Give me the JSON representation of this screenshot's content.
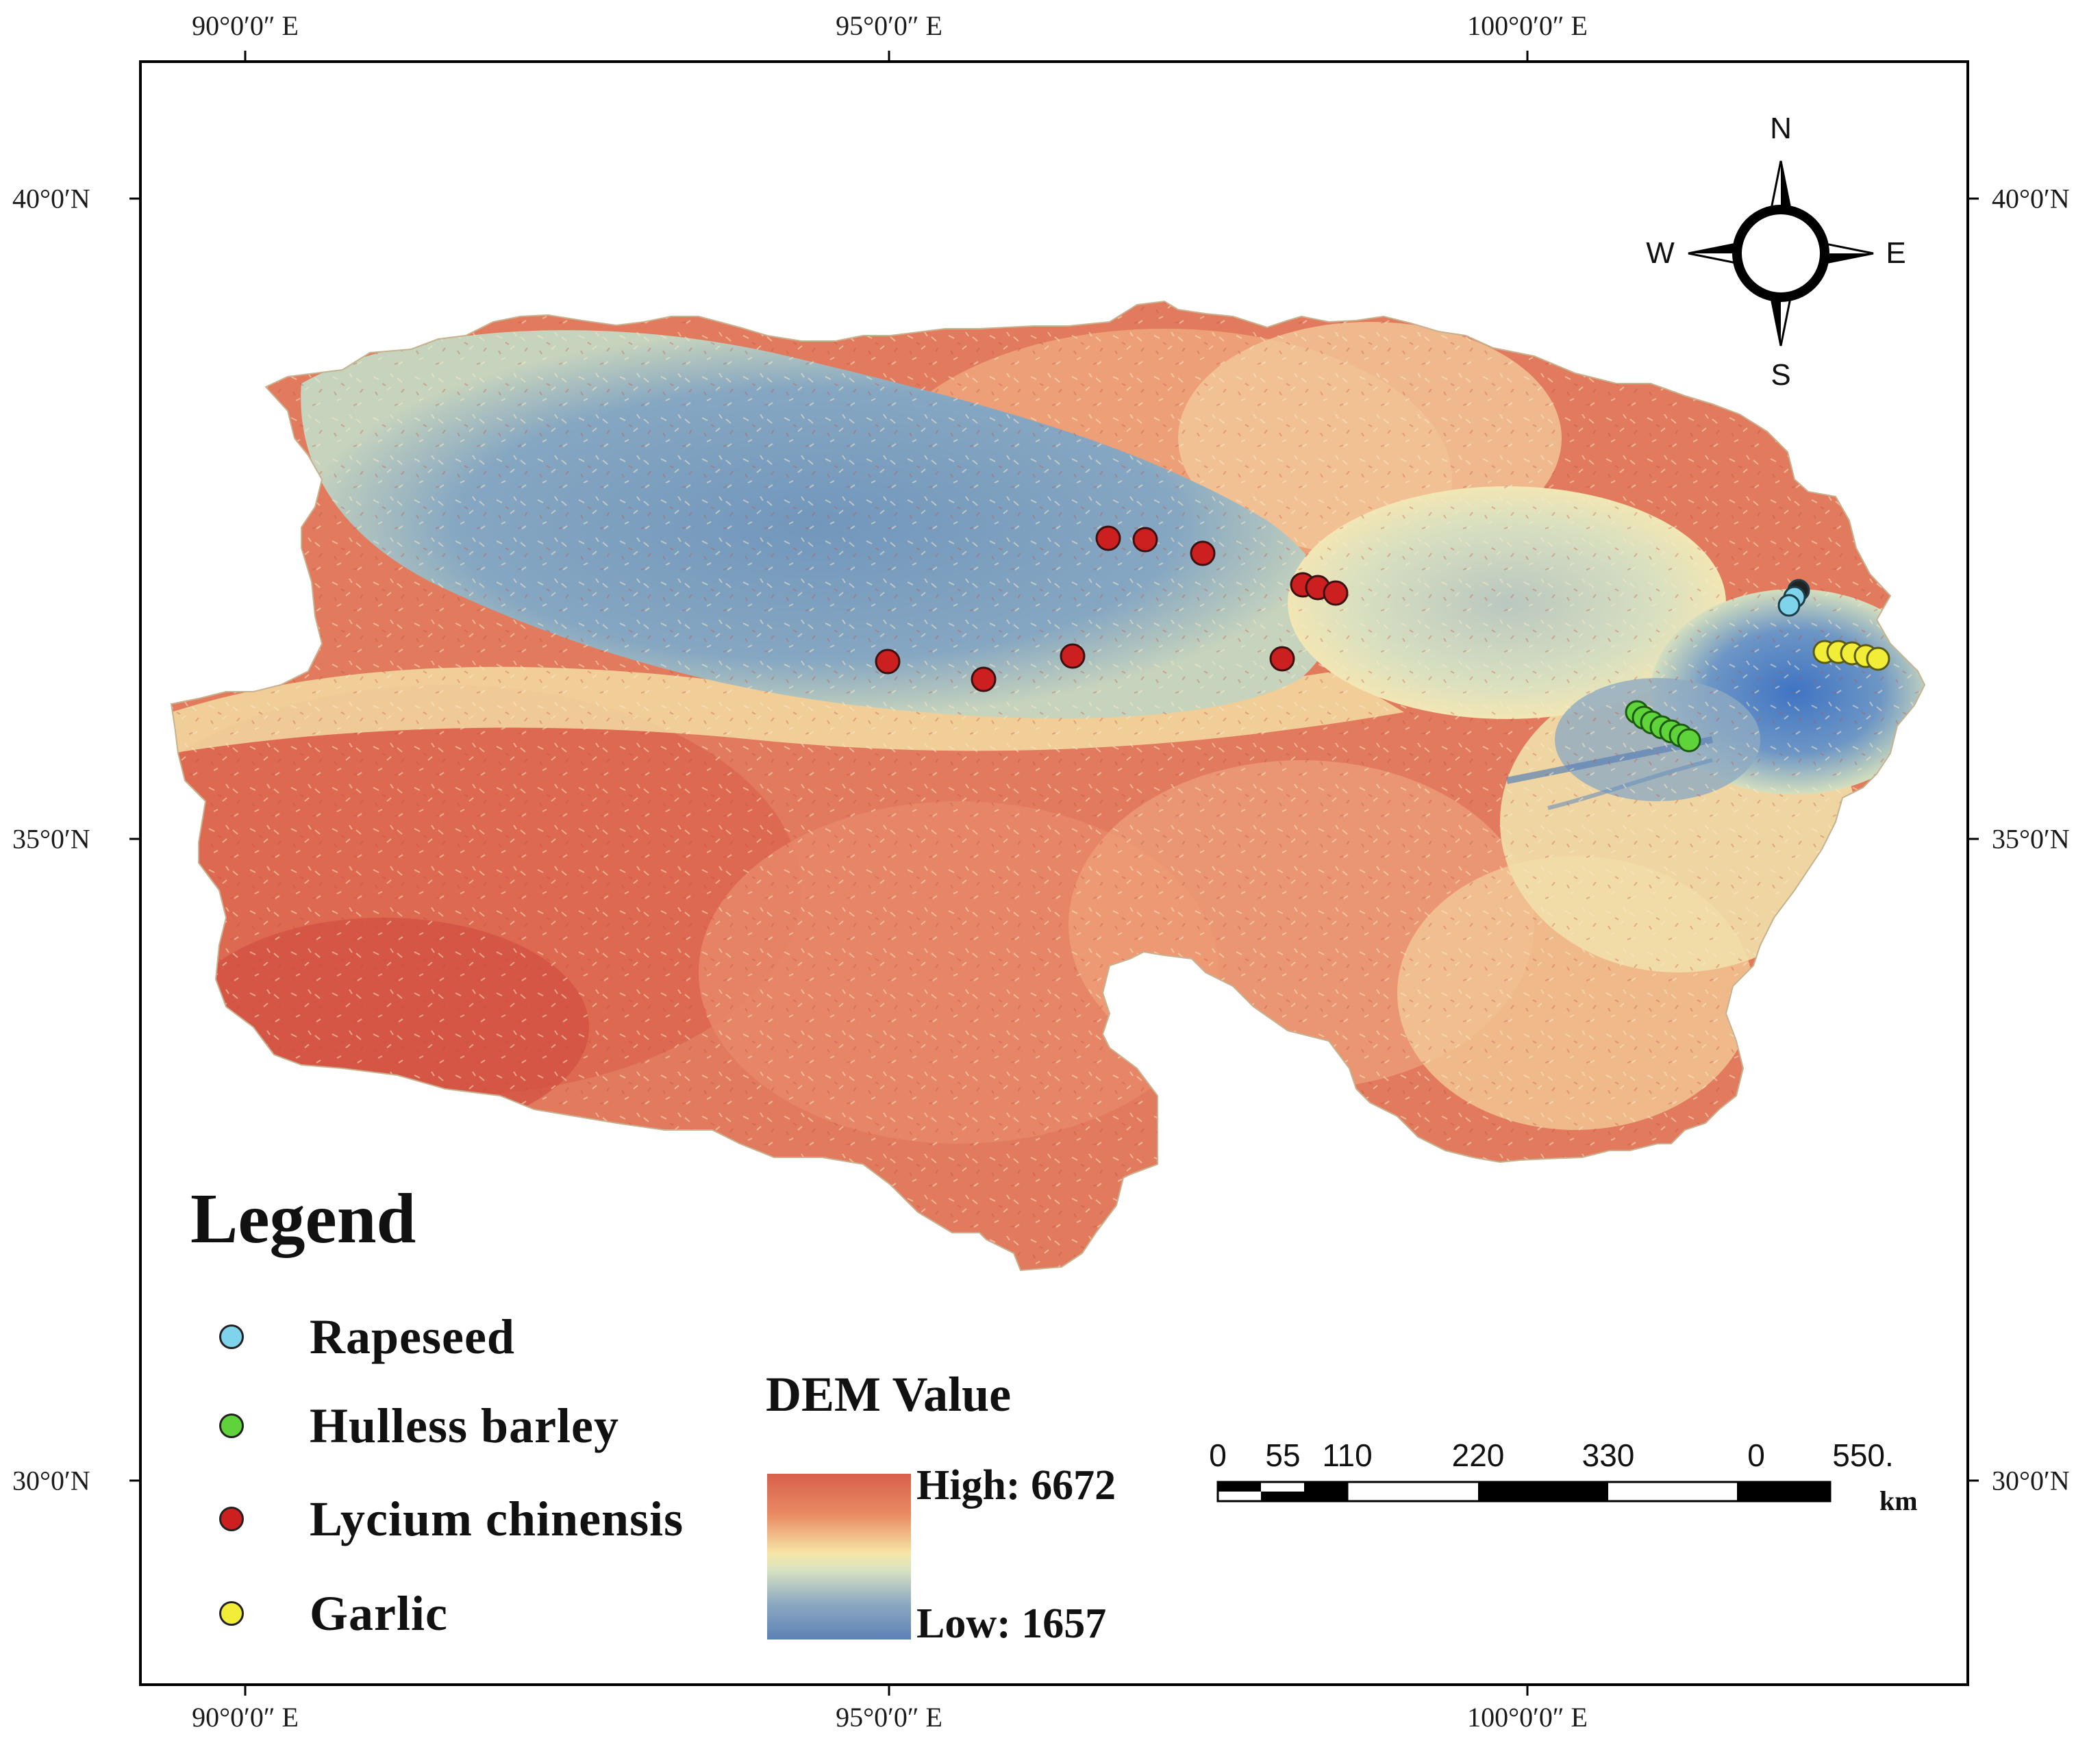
{
  "map": {
    "axes": {
      "top": [
        "90°0′0″ E",
        "95°0′0″ E",
        "100°0′0″ E"
      ],
      "bottom": [
        "90°0′0″ E",
        "95°0′0″ E",
        "100°0′0″ E"
      ],
      "left": [
        "40°0′N",
        "35°0′N",
        "30°0′N"
      ],
      "right": [
        "40°0′N",
        "35°0′N",
        "30°0′N"
      ]
    },
    "compass": {
      "n": "N",
      "s": "S",
      "e": "E",
      "w": "W"
    },
    "legend": {
      "title": "Legend",
      "items": [
        {
          "label": "Rapeseed",
          "color": "#7fd3ea"
        },
        {
          "label": "Hulless barley",
          "color": "#5ed43a"
        },
        {
          "label": "Lycium chinensis",
          "color": "#cc2020"
        },
        {
          "label": "Garlic",
          "color": "#f2ee38"
        }
      ]
    },
    "dem": {
      "title": "DEM Value",
      "high": "High: 6672",
      "low": "Low: 1657",
      "high_color": "#d8604b",
      "low_color": "#5b82b6"
    },
    "scale_bar": {
      "labels": [
        "0",
        "55",
        "110",
        "220",
        "330",
        "0",
        "550."
      ],
      "unit": "km"
    },
    "terrain_colors": {
      "high": "#d9634c",
      "mid": "#f4d49a",
      "basin": "#7a9cc0",
      "low": "#4f7bc0"
    }
  }
}
